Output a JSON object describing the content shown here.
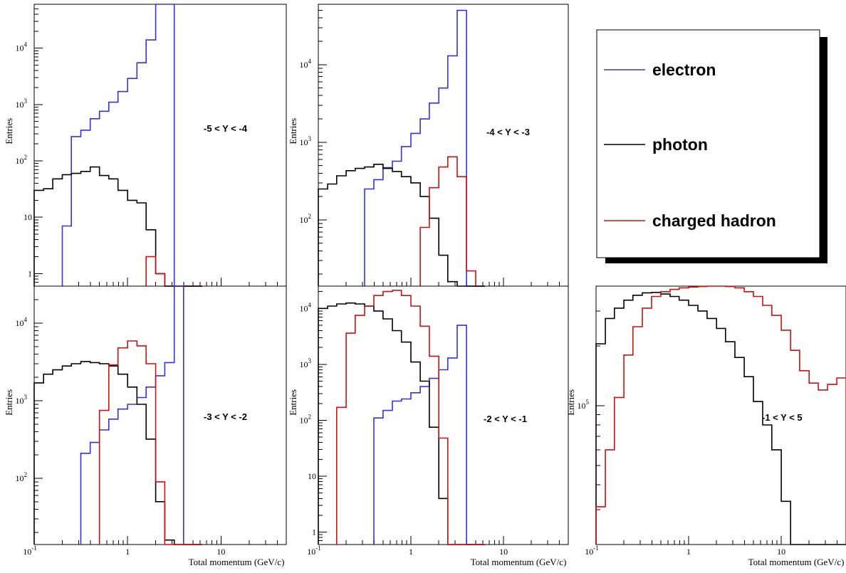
{
  "legend": {
    "entries": [
      {
        "label": "electron",
        "color": "#3333dd"
      },
      {
        "label": "photon",
        "color": "#000000"
      },
      {
        "label": "charged hadron",
        "color": "#cc1111"
      }
    ]
  },
  "axis_text": {
    "xlabel": "Total momentum (GeV/c)",
    "ylabel": "Entries",
    "x_ticks": [
      {
        "v": 0.1,
        "label": "10",
        "sup": "-1"
      },
      {
        "v": 1,
        "label": "1",
        "sup": ""
      },
      {
        "v": 10,
        "label": "10",
        "sup": ""
      }
    ]
  },
  "chart_data": [
    {
      "type": "histogram",
      "annotation": "-5 < Y < -4",
      "xscale": "log",
      "yscale": "log",
      "xlim": [
        0.1,
        50
      ],
      "ylim": [
        0.6,
        60000
      ],
      "y_ticks": [
        {
          "v": 1,
          "label": "1"
        },
        {
          "v": 10,
          "label": "10"
        },
        {
          "v": 100,
          "label": "10",
          "sup": "2"
        },
        {
          "v": 1000,
          "label": "10",
          "sup": "3"
        },
        {
          "v": 10000,
          "label": "10",
          "sup": "4"
        }
      ],
      "bin_edges": [
        0.1,
        0.126,
        0.158,
        0.2,
        0.25,
        0.316,
        0.398,
        0.5,
        0.63,
        0.79,
        1.0,
        1.26,
        1.58,
        2.0,
        2.5,
        3.16,
        3.98,
        5.0,
        6.3
      ],
      "series": [
        {
          "name": "electron",
          "values": [
            0,
            0,
            0,
            7,
            270,
            350,
            560,
            760,
            1100,
            1700,
            2900,
            5500,
            14000,
            60000,
            60000,
            0,
            0,
            0
          ]
        },
        {
          "name": "photon",
          "values": [
            30,
            32,
            48,
            57,
            60,
            65,
            78,
            55,
            48,
            30,
            20,
            18,
            6,
            1,
            0,
            0,
            0,
            0
          ]
        },
        {
          "name": "charged hadron",
          "values": [
            0,
            0,
            0,
            0,
            0,
            0,
            0,
            0,
            0,
            0,
            0,
            0,
            2,
            1,
            0,
            0,
            0,
            0
          ]
        }
      ]
    },
    {
      "type": "histogram",
      "annotation": "-4 < Y < -3",
      "xscale": "log",
      "yscale": "log",
      "xlim": [
        0.1,
        50
      ],
      "ylim": [
        14,
        60000
      ],
      "y_ticks": [
        {
          "v": 100,
          "label": "10",
          "sup": "2"
        },
        {
          "v": 1000,
          "label": "10",
          "sup": "3"
        },
        {
          "v": 10000,
          "label": "10",
          "sup": "4"
        }
      ],
      "bin_edges": [
        0.1,
        0.126,
        0.158,
        0.2,
        0.25,
        0.316,
        0.398,
        0.5,
        0.63,
        0.79,
        1.0,
        1.26,
        1.58,
        2.0,
        2.5,
        3.16,
        3.98,
        5.0,
        6.3
      ],
      "series": [
        {
          "name": "electron",
          "values": [
            0,
            0,
            0,
            0,
            0,
            250,
            330,
            470,
            570,
            880,
            1300,
            2000,
            3200,
            5000,
            13000,
            50000,
            0,
            0
          ]
        },
        {
          "name": "photon",
          "values": [
            250,
            290,
            370,
            430,
            460,
            480,
            520,
            460,
            420,
            360,
            300,
            200,
            105,
            35,
            16,
            0,
            0,
            0
          ]
        },
        {
          "name": "charged hadron",
          "values": [
            0,
            0,
            0,
            0,
            0,
            0,
            0,
            0,
            0,
            0,
            0,
            80,
            260,
            480,
            650,
            360,
            22,
            0
          ]
        }
      ]
    },
    {
      "type": "histogram",
      "annotation": "-3 < Y < -2",
      "xscale": "log",
      "yscale": "log",
      "xlim": [
        0.1,
        50
      ],
      "ylim": [
        14,
        30000
      ],
      "y_ticks": [
        {
          "v": 100,
          "label": "10",
          "sup": "2"
        },
        {
          "v": 1000,
          "label": "10",
          "sup": "3"
        },
        {
          "v": 10000,
          "label": "10",
          "sup": "4"
        }
      ],
      "bin_edges": [
        0.1,
        0.126,
        0.158,
        0.2,
        0.25,
        0.316,
        0.398,
        0.5,
        0.63,
        0.79,
        1.0,
        1.26,
        1.58,
        2.0,
        2.5,
        3.16,
        3.98,
        5.0,
        6.3
      ],
      "series": [
        {
          "name": "electron",
          "values": [
            0,
            0,
            0,
            0,
            0,
            210,
            290,
            420,
            580,
            780,
            900,
            1100,
            1500,
            2100,
            3100,
            30000,
            0,
            0
          ]
        },
        {
          "name": "photon",
          "values": [
            1700,
            2200,
            2500,
            2800,
            3000,
            3200,
            3100,
            3000,
            2800,
            2200,
            1500,
            900,
            320,
            50,
            16,
            0,
            0,
            0
          ]
        },
        {
          "name": "charged hadron",
          "values": [
            0,
            0,
            0,
            0,
            0,
            0,
            0,
            750,
            2900,
            4800,
            5900,
            5100,
            3000,
            90,
            0,
            0,
            0,
            0
          ]
        }
      ]
    },
    {
      "type": "histogram",
      "annotation": "-2 < Y < -1",
      "xscale": "log",
      "yscale": "log",
      "xlim": [
        0.1,
        50
      ],
      "ylim": [
        0.6,
        25000
      ],
      "y_ticks": [
        {
          "v": 1,
          "label": "1"
        },
        {
          "v": 10,
          "label": "10"
        },
        {
          "v": 100,
          "label": "10",
          "sup": "2"
        },
        {
          "v": 1000,
          "label": "10",
          "sup": "3"
        },
        {
          "v": 10000,
          "label": "10",
          "sup": "4"
        }
      ],
      "bin_edges": [
        0.1,
        0.126,
        0.158,
        0.2,
        0.25,
        0.316,
        0.398,
        0.5,
        0.63,
        0.79,
        1.0,
        1.26,
        1.58,
        2.0,
        2.5,
        3.16,
        3.98,
        5.0,
        6.3
      ],
      "series": [
        {
          "name": "electron",
          "values": [
            0,
            0,
            0,
            0,
            0,
            0,
            110,
            150,
            220,
            240,
            310,
            400,
            560,
            800,
            1300,
            5000,
            0,
            0
          ]
        },
        {
          "name": "photon",
          "values": [
            10000,
            11000,
            12000,
            12500,
            12000,
            11000,
            9000,
            6500,
            4000,
            2500,
            1100,
            500,
            75,
            4,
            0,
            0,
            0,
            0
          ]
        },
        {
          "name": "charged hadron",
          "values": [
            0,
            0,
            170,
            3600,
            7500,
            11000,
            17000,
            20000,
            21000,
            17000,
            11000,
            4800,
            1400,
            48,
            0,
            0,
            0,
            0
          ]
        }
      ]
    },
    {
      "type": "histogram",
      "annotation": "-1 < Y < 5",
      "xscale": "log",
      "yscale": "log",
      "xlim": [
        0.1,
        50
      ],
      "ylim": [
        20000,
        400000
      ],
      "y_ticks": [
        {
          "v": 100000,
          "label": "10",
          "sup": "5"
        }
      ],
      "bin_edges": [
        0.1,
        0.126,
        0.158,
        0.2,
        0.25,
        0.316,
        0.398,
        0.5,
        0.63,
        0.79,
        1.0,
        1.26,
        1.58,
        2.0,
        2.5,
        3.16,
        3.98,
        5.0,
        6.3,
        7.9,
        10.0,
        12.6,
        15.8,
        20.0,
        25.1,
        31.6,
        39.8,
        50.1
      ],
      "series": [
        {
          "name": "photon",
          "values": [
            205000,
            275000,
            310000,
            340000,
            360000,
            370000,
            372000,
            365000,
            355000,
            340000,
            320000,
            300000,
            275000,
            245000,
            210000,
            175000,
            140000,
            105000,
            80000,
            60000,
            33000,
            0,
            0,
            0,
            0,
            0,
            0
          ]
        },
        {
          "name": "charged hadron",
          "values": [
            31000,
            60000,
            110000,
            180000,
            250000,
            310000,
            355000,
            375000,
            385000,
            392000,
            396000,
            398000,
            400000,
            400000,
            398000,
            392000,
            375000,
            355000,
            320000,
            285000,
            240000,
            190000,
            150000,
            130000,
            120000,
            128000,
            138000
          ]
        }
      ]
    }
  ]
}
